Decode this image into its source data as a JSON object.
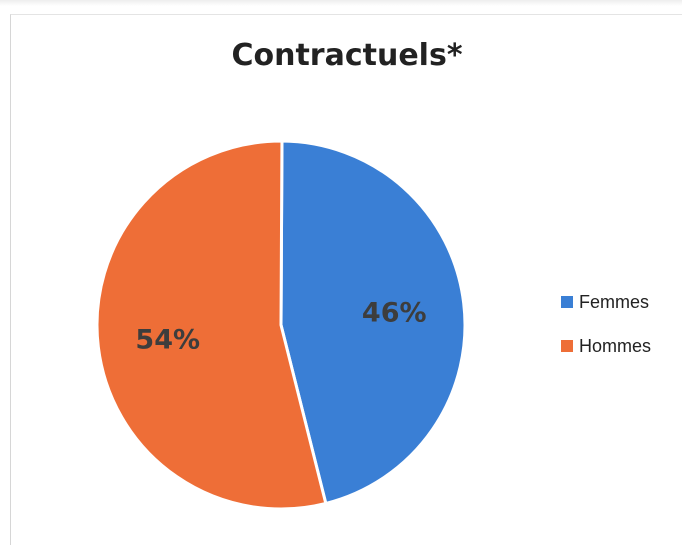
{
  "chart_data": {
    "type": "pie",
    "title": "Contractuels*",
    "categories": [
      "Femmes",
      "Hommes"
    ],
    "values": [
      46,
      54
    ],
    "labels": [
      "46%",
      "54%"
    ],
    "colors": [
      "#3a7fd5",
      "#ee6e37"
    ],
    "legend_position": "right"
  }
}
